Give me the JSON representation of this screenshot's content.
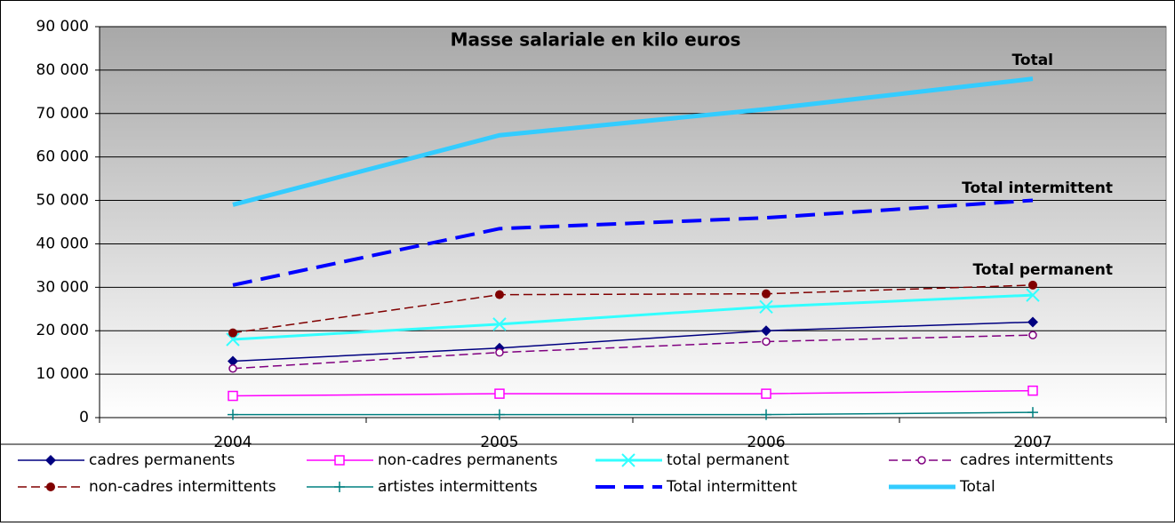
{
  "chart_data": {
    "type": "line",
    "title": "Masse salariale en kilo euros",
    "categories": [
      "2004",
      "2005",
      "2006",
      "2007"
    ],
    "series": [
      {
        "name": "cadres permanents",
        "color": "#000080",
        "marker": "diamond",
        "dash": false,
        "width": 1.5,
        "values": [
          13000,
          16000,
          20000,
          22000
        ]
      },
      {
        "name": "non-cadres permanents",
        "color": "#ff00ff",
        "marker": "square",
        "dash": false,
        "width": 1.5,
        "values": [
          5000,
          5500,
          5500,
          6200
        ]
      },
      {
        "name": "total permanent",
        "color": "#33ffff",
        "marker": "x",
        "dash": false,
        "width": 3,
        "values": [
          18000,
          21500,
          25500,
          28200
        ]
      },
      {
        "name": "cadres intermittents",
        "color": "#800080",
        "marker": "circle-open",
        "dash": true,
        "width": 1.5,
        "values": [
          11300,
          15000,
          17500,
          19000
        ]
      },
      {
        "name": "non-cadres intermittents",
        "color": "#800000",
        "marker": "circle",
        "dash": true,
        "width": 1.5,
        "values": [
          19500,
          28300,
          28500,
          30500
        ]
      },
      {
        "name": "artistes intermittents",
        "color": "#008080",
        "marker": "plus",
        "dash": false,
        "width": 1.5,
        "values": [
          700,
          700,
          700,
          1200
        ]
      },
      {
        "name": "Total intermittent",
        "color": "#0000ff",
        "marker": "none",
        "dash": true,
        "width": 4,
        "values": [
          30500,
          43500,
          46000,
          50000
        ]
      },
      {
        "name": "Total",
        "color": "#33ccff",
        "marker": "none",
        "dash": false,
        "width": 5,
        "values": [
          49000,
          65000,
          71000,
          78000
        ]
      }
    ],
    "annotations": [
      "Total",
      "Total intermittent",
      "Total permanent"
    ],
    "ylim": [
      0,
      90000
    ],
    "yticks": [
      {
        "value": 0,
        "label": "0"
      },
      {
        "value": 10000,
        "label": "10 000"
      },
      {
        "value": 20000,
        "label": "20 000"
      },
      {
        "value": 30000,
        "label": "30 000"
      },
      {
        "value": 40000,
        "label": "40 000"
      },
      {
        "value": 50000,
        "label": "50 000"
      },
      {
        "value": 60000,
        "label": "60 000"
      },
      {
        "value": 70000,
        "label": "70 000"
      },
      {
        "value": 80000,
        "label": "80 000"
      },
      {
        "value": 90000,
        "label": "90 000"
      }
    ],
    "grid": true,
    "legend": "bottom"
  }
}
